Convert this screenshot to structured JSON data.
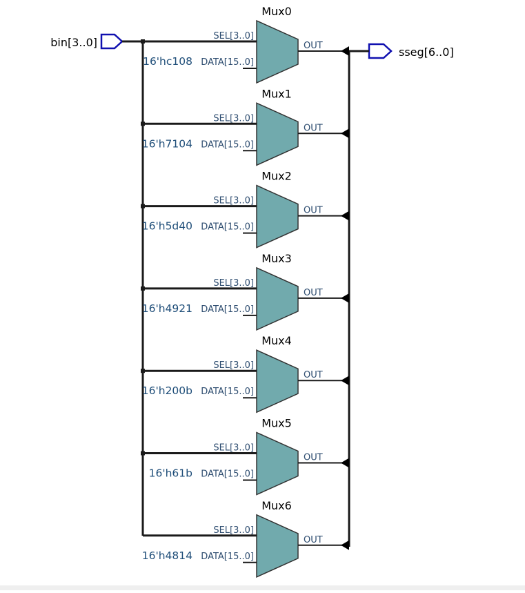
{
  "input_port": {
    "label": "bin[3..0]"
  },
  "output_port": {
    "label": "sseg[6..0]"
  },
  "mux_pins": {
    "sel": "SEL[3..0]",
    "data": "DATA[15..0]",
    "out": "OUT"
  },
  "colors": {
    "mux_fill": "#71aaad",
    "wire": "#1a1a1a",
    "port_outline": "#1010b0",
    "pin_text": "#2e4d70",
    "const_text": "#1f4e79"
  },
  "muxes": [
    {
      "name": "Mux0",
      "data_const": "16'hc108"
    },
    {
      "name": "Mux1",
      "data_const": "16'h7104"
    },
    {
      "name": "Mux2",
      "data_const": "16'h5d40"
    },
    {
      "name": "Mux3",
      "data_const": "16'h4921"
    },
    {
      "name": "Mux4",
      "data_const": "16'h200b"
    },
    {
      "name": "Mux5",
      "data_const": "16'h61b"
    },
    {
      "name": "Mux6",
      "data_const": "16'h4814"
    }
  ]
}
